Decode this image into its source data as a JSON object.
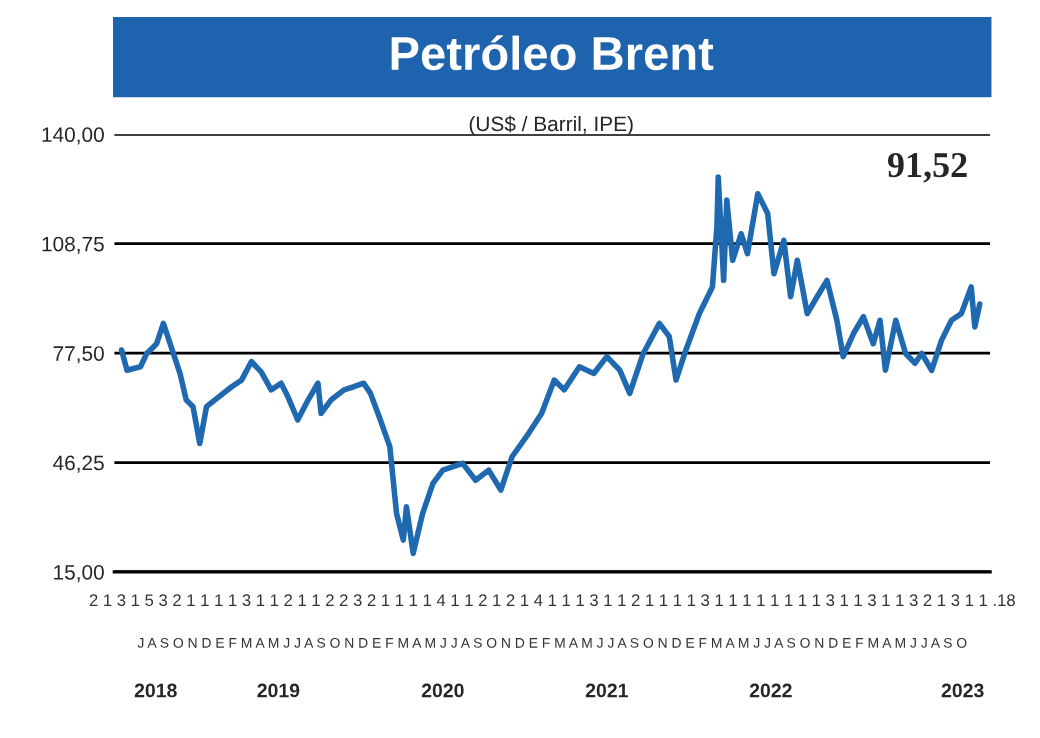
{
  "chart_data": {
    "type": "line",
    "title": "Petróleo Brent",
    "subtitle": "(US$ / Barril, IPE)",
    "annotations": [
      "91,52",
      "2 1 3 1 5 3 2 1 1 1 1 3 1 1 2 1 1 2 2 3 2 1 1 1 1 4 1 1 2 1 2 1 4 1 1 1 3 1 1 2 1 1 1 1 3 1 1 1 1 1 1 1 1 3 1 1 3 1 1 3 2 1 3 1 1 .18",
      "J A S O N D E F M A M J J A S O N D E F M A M J J A S O N D E F M A M J J A S O N D E F M A M J J A S O N D E F M A M J J A S O"
    ],
    "x": [
      "2018-07-17",
      "2018-07-29",
      "2018-08-28",
      "2018-09-11",
      "2018-10-03",
      "2018-10-18",
      "2018-11-02",
      "2018-11-24",
      "2018-12-08",
      "2018-12-23",
      "2019-01-07",
      "2019-01-22",
      "2019-02-19",
      "2019-03-19",
      "2019-04-10",
      "2019-05-02",
      "2019-05-24",
      "2019-06-15",
      "2019-07-07",
      "2019-07-22",
      "2019-08-13",
      "2019-09-05",
      "2019-09-27",
      "2019-10-04",
      "2019-10-26",
      "2019-11-24",
      "2019-12-16",
      "2020-01-07",
      "2020-01-22",
      "2020-02-13",
      "2020-03-05",
      "2020-03-20",
      "2020-04-04",
      "2020-04-11",
      "2020-04-26",
      "2020-05-17",
      "2020-06-09",
      "2020-07-01",
      "2020-08-14",
      "2020-09-12",
      "2020-10-11",
      "2020-11-07",
      "2020-12-02",
      "2021-01-08",
      "2021-02-06",
      "2021-03-06",
      "2021-03-28",
      "2021-05-01",
      "2021-06-02",
      "2021-07-01",
      "2021-07-30",
      "2021-08-21",
      "2021-09-20",
      "2021-10-26",
      "2021-11-17",
      "2021-12-02",
      "2021-12-24",
      "2022-01-23",
      "2022-02-21",
      "2022-03-03",
      "2022-03-06",
      "2022-03-18",
      "2022-03-25",
      "2022-04-07",
      "2022-04-26",
      "2022-05-10",
      "2022-06-02",
      "2022-06-24",
      "2022-07-08",
      "2022-07-30",
      "2022-08-14",
      "2022-08-29",
      "2022-09-20",
      "2022-10-12",
      "2022-11-03",
      "2022-11-25",
      "2022-12-09",
      "2023-01-01",
      "2023-01-23",
      "2023-02-14",
      "2023-03-01",
      "2023-03-13",
      "2023-04-05",
      "2023-04-27",
      "2023-05-18",
      "2023-06-02",
      "2023-06-24",
      "2023-07-16",
      "2023-08-07",
      "2023-08-29",
      "2023-09-20",
      "2023-09-28",
      "2023-10-09"
    ],
    "series": [
      {
        "color": "#1f69b0",
        "values": [
          78.4,
          72.6,
          73.6,
          77.4,
          80.2,
          86,
          80.2,
          71.7,
          64.1,
          62.2,
          51.7,
          62.2,
          65.1,
          67.9,
          69.8,
          75.1,
          72.1,
          67,
          68.9,
          65.1,
          58.4,
          64.1,
          68.9,
          60.3,
          64.1,
          67,
          67.9,
          68.9,
          66,
          58.4,
          50.8,
          31.7,
          24.1,
          33.6,
          20.3,
          31.7,
          40.3,
          44.1,
          46,
          41.2,
          44.1,
          38.4,
          47.9,
          54.6,
          60.3,
          69.8,
          67,
          73.6,
          71.7,
          76.5,
          72.6,
          66,
          77.4,
          86,
          82.2,
          69.8,
          78.4,
          88.8,
          96.4,
          113.6,
          127.8,
          98.3,
          121.2,
          104,
          111.6,
          105.9,
          123,
          117.4,
          100.2,
          109.7,
          93.6,
          104,
          88.8,
          93.6,
          98.3,
          86.9,
          76.5,
          83.1,
          87.9,
          80.2,
          86.9,
          72.6,
          86.9,
          77.4,
          74.6,
          77.4,
          72.6,
          81.2,
          86.9,
          88.8,
          96.4,
          85,
          91.52
        ]
      }
    ],
    "xlim": [
      "2018-07-01",
      "2023-11-01"
    ],
    "xticks": [
      {
        "value": "2018-10-01",
        "label": "2018"
      },
      {
        "value": "2019-07-01",
        "label": "2019"
      },
      {
        "value": "2020-07-01",
        "label": "2020"
      },
      {
        "value": "2021-07-01",
        "label": "2021"
      },
      {
        "value": "2022-07-01",
        "label": "2022"
      },
      {
        "value": "2023-09-01",
        "label": "2023"
      }
    ],
    "ylim": [
      15,
      140
    ],
    "yticks": [
      {
        "value": 15,
        "label": "15,00"
      },
      {
        "value": 46.25,
        "label": "46,25"
      },
      {
        "value": 77.5,
        "label": "77,50"
      },
      {
        "value": 108.75,
        "label": "108,75"
      },
      {
        "value": 140,
        "label": "140,00"
      }
    ],
    "grid": "y",
    "marker": "none",
    "line_style": "solid"
  }
}
